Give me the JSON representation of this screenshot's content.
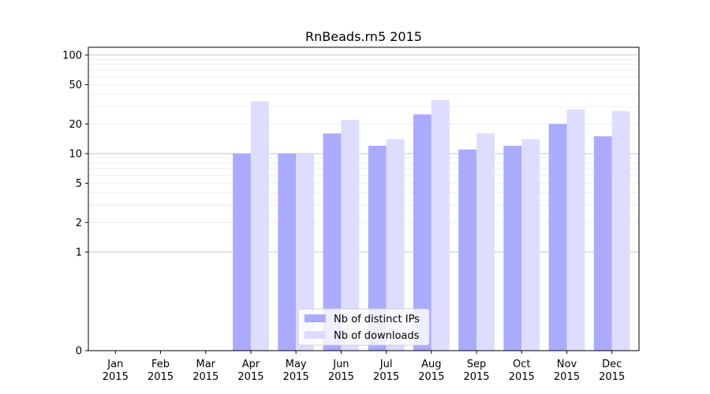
{
  "chart_data": {
    "type": "bar",
    "title": "RnBeads.rn5 2015",
    "xlabel": "",
    "ylabel": "",
    "y_scale": "symlog",
    "ylim": [
      0,
      120
    ],
    "y_ticks": [
      0,
      1,
      2,
      5,
      10,
      20,
      50,
      100
    ],
    "categories": [
      [
        "Jan",
        "2015"
      ],
      [
        "Feb",
        "2015"
      ],
      [
        "Mar",
        "2015"
      ],
      [
        "Apr",
        "2015"
      ],
      [
        "May",
        "2015"
      ],
      [
        "Jun",
        "2015"
      ],
      [
        "Jul",
        "2015"
      ],
      [
        "Aug",
        "2015"
      ],
      [
        "Sep",
        "2015"
      ],
      [
        "Oct",
        "2015"
      ],
      [
        "Nov",
        "2015"
      ],
      [
        "Dec",
        "2015"
      ]
    ],
    "series": [
      {
        "name": "Nb of distinct IPs",
        "color": "#aaaaff",
        "values": [
          0,
          0,
          0,
          10,
          10,
          16,
          12,
          25,
          11,
          12,
          20,
          15
        ]
      },
      {
        "name": "Nb of downloads",
        "color": "#ddddff",
        "values": [
          0,
          0,
          0,
          34,
          10,
          22,
          14,
          35,
          16,
          14,
          28,
          27
        ]
      }
    ],
    "grid": "y",
    "legend_position": "lower center"
  }
}
